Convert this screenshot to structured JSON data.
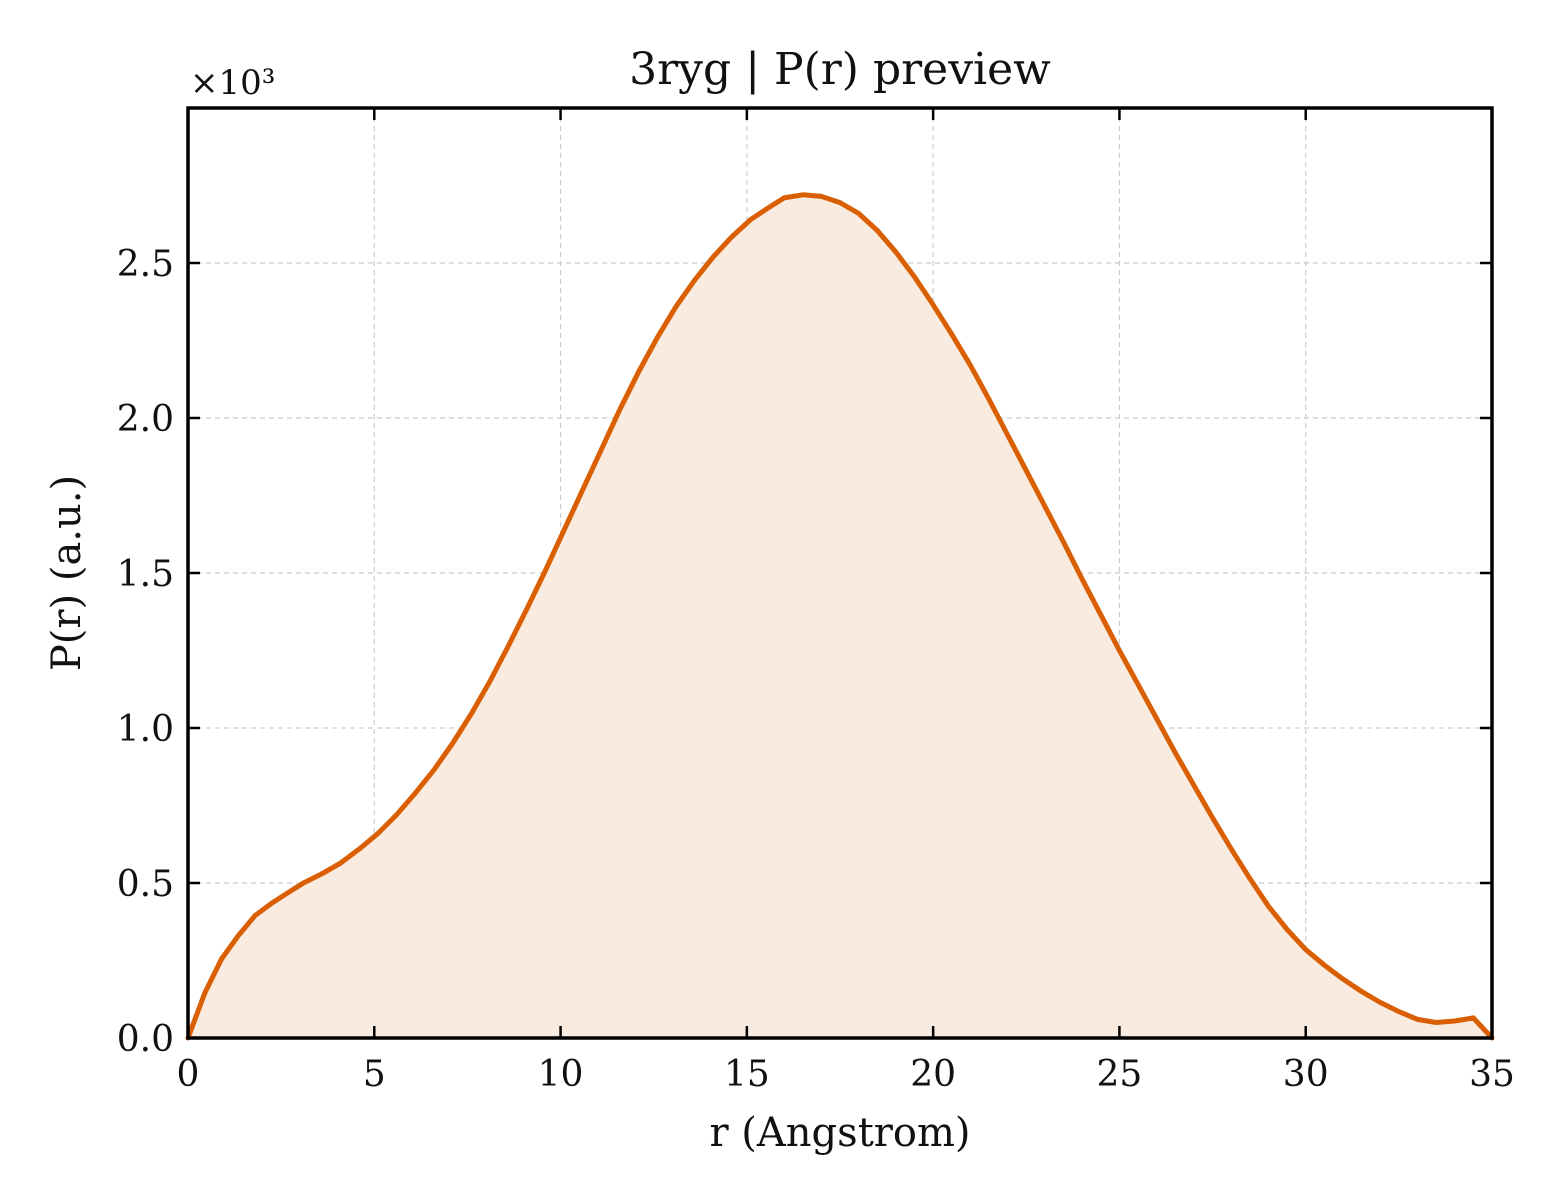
{
  "colors": {
    "line": "#d95f02",
    "fill": "#f9ebe0"
  },
  "chart_data": {
    "type": "area",
    "title": "3ryg | P(r) preview",
    "xlabel": "r (Angstrom)",
    "ylabel": "P(r) (a.u.)",
    "y_multiplier_label": "×10³",
    "xlim": [
      0,
      35
    ],
    "ylim": [
      0,
      3.0
    ],
    "y_scale_factor": 1000,
    "grid": true,
    "x_ticks": [
      0,
      5,
      10,
      15,
      20,
      25,
      30,
      35
    ],
    "x_tick_labels": [
      "0",
      "5",
      "10",
      "15",
      "20",
      "25",
      "30",
      "35"
    ],
    "y_ticks": [
      0,
      0.5,
      1.0,
      1.5,
      2.0,
      2.5
    ],
    "y_tick_labels": [
      "0.0",
      "0.5",
      "1.0",
      "1.5",
      "2.0",
      "2.5"
    ],
    "series": [
      {
        "x": [
          0,
          0.45,
          0.9,
          1.35,
          1.8,
          2.25,
          2.7,
          3.1,
          3.6,
          4.1,
          4.6,
          5.1,
          5.6,
          6.1,
          6.6,
          7.1,
          7.6,
          8.1,
          8.6,
          9.1,
          9.6,
          10.1,
          10.6,
          11.1,
          11.6,
          12.1,
          12.6,
          13.1,
          13.6,
          14.1,
          14.6,
          15.1,
          15.6,
          16.0,
          16.5,
          17.0,
          17.5,
          18.0,
          18.5,
          19.0,
          19.5,
          20.0,
          20.5,
          21.0,
          21.5,
          22.0,
          22.5,
          23.0,
          23.5,
          24.0,
          24.5,
          25.0,
          25.5,
          26.0,
          26.5,
          27.0,
          27.5,
          28.0,
          28.5,
          29.0,
          29.5,
          30.0,
          30.5,
          31.0,
          31.5,
          32.0,
          32.5,
          33.0,
          33.5,
          34.0,
          34.5,
          35.0
        ],
        "values": [
          0.0,
          0.145,
          0.255,
          0.33,
          0.395,
          0.435,
          0.47,
          0.5,
          0.53,
          0.565,
          0.61,
          0.66,
          0.72,
          0.79,
          0.865,
          0.95,
          1.045,
          1.15,
          1.265,
          1.385,
          1.51,
          1.64,
          1.77,
          1.9,
          2.03,
          2.15,
          2.26,
          2.36,
          2.445,
          2.52,
          2.585,
          2.64,
          2.68,
          2.71,
          2.72,
          2.715,
          2.695,
          2.66,
          2.605,
          2.535,
          2.455,
          2.365,
          2.27,
          2.17,
          2.06,
          1.945,
          1.83,
          1.715,
          1.6,
          1.48,
          1.365,
          1.25,
          1.14,
          1.03,
          0.92,
          0.815,
          0.71,
          0.61,
          0.515,
          0.425,
          0.35,
          0.285,
          0.235,
          0.19,
          0.15,
          0.115,
          0.085,
          0.06,
          0.05,
          0.055,
          0.065,
          0.0
        ]
      }
    ]
  }
}
